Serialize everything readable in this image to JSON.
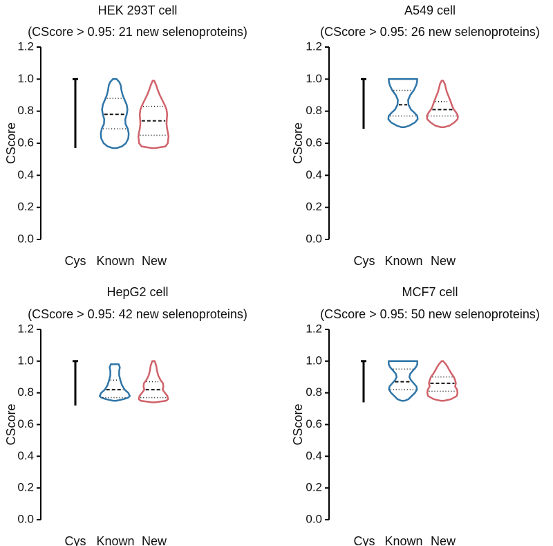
{
  "colors": {
    "cys": "#000000",
    "known": "#2f75a8",
    "new": "#d0626a",
    "axis": "#000000"
  },
  "chart_data": [
    {
      "type": "violin",
      "title": "HEK 293T cell",
      "subtitle": "(CScore > 0.95: 21 new selenoproteins)",
      "ylabel": "CScore",
      "ylim": [
        0.0,
        1.2
      ],
      "yticks": [
        "0.0",
        "0.2",
        "0.4",
        "0.6",
        "0.8",
        "1.0",
        "1.2"
      ],
      "categories": [
        "Cys",
        "Known",
        "New"
      ],
      "cys": {
        "min": 0.57,
        "max": 1.0
      },
      "series": [
        {
          "name": "Known",
          "q1": 0.69,
          "median": 0.78,
          "q3": 0.88,
          "profile": [
            [
              0.57,
              0.12
            ],
            [
              0.58,
              0.45
            ],
            [
              0.6,
              0.7
            ],
            [
              0.63,
              0.85
            ],
            [
              0.66,
              0.88
            ],
            [
              0.69,
              0.82
            ],
            [
              0.72,
              0.68
            ],
            [
              0.75,
              0.66
            ],
            [
              0.78,
              0.75
            ],
            [
              0.81,
              0.8
            ],
            [
              0.84,
              0.75
            ],
            [
              0.87,
              0.62
            ],
            [
              0.9,
              0.5
            ],
            [
              0.93,
              0.42
            ],
            [
              0.96,
              0.38
            ],
            [
              0.98,
              0.3
            ],
            [
              1.0,
              0.12
            ]
          ]
        },
        {
          "name": "New",
          "q1": 0.65,
          "median": 0.74,
          "q3": 0.83,
          "profile": [
            [
              0.57,
              0.1
            ],
            [
              0.58,
              0.75
            ],
            [
              0.6,
              0.9
            ],
            [
              0.62,
              0.92
            ],
            [
              0.64,
              0.95
            ],
            [
              0.66,
              0.92
            ],
            [
              0.69,
              0.86
            ],
            [
              0.72,
              0.82
            ],
            [
              0.75,
              0.84
            ],
            [
              0.78,
              0.86
            ],
            [
              0.81,
              0.82
            ],
            [
              0.84,
              0.7
            ],
            [
              0.87,
              0.55
            ],
            [
              0.9,
              0.4
            ],
            [
              0.93,
              0.28
            ],
            [
              0.96,
              0.18
            ],
            [
              0.99,
              0.05
            ]
          ]
        }
      ]
    },
    {
      "type": "violin",
      "title": "A549 cell",
      "subtitle": "(CScore > 0.95: 26 new selenoproteins)",
      "ylabel": "CScore",
      "ylim": [
        0.0,
        1.2
      ],
      "yticks": [
        "0.0",
        "0.2",
        "0.4",
        "0.6",
        "0.8",
        "1.0",
        "1.2"
      ],
      "categories": [
        "Cys",
        "Known",
        "New"
      ],
      "cys": {
        "min": 0.69,
        "max": 1.0
      },
      "series": [
        {
          "name": "Known",
          "q1": 0.77,
          "median": 0.84,
          "q3": 0.93,
          "profile": [
            [
              0.7,
              0.1
            ],
            [
              0.71,
              0.4
            ],
            [
              0.73,
              0.75
            ],
            [
              0.75,
              0.92
            ],
            [
              0.77,
              0.9
            ],
            [
              0.79,
              0.72
            ],
            [
              0.81,
              0.5
            ],
            [
              0.84,
              0.35
            ],
            [
              0.87,
              0.32
            ],
            [
              0.9,
              0.45
            ],
            [
              0.93,
              0.68
            ],
            [
              0.96,
              0.82
            ],
            [
              0.98,
              0.88
            ],
            [
              1.0,
              0.9
            ]
          ]
        },
        {
          "name": "New",
          "q1": 0.77,
          "median": 0.81,
          "q3": 0.86,
          "profile": [
            [
              0.7,
              0.1
            ],
            [
              0.71,
              0.45
            ],
            [
              0.73,
              0.75
            ],
            [
              0.75,
              0.95
            ],
            [
              0.77,
              0.98
            ],
            [
              0.79,
              0.88
            ],
            [
              0.81,
              0.72
            ],
            [
              0.83,
              0.62
            ],
            [
              0.86,
              0.52
            ],
            [
              0.89,
              0.4
            ],
            [
              0.92,
              0.28
            ],
            [
              0.95,
              0.2
            ],
            [
              0.97,
              0.15
            ],
            [
              0.99,
              0.05
            ]
          ]
        }
      ]
    },
    {
      "type": "violin",
      "title": "HepG2 cell",
      "subtitle": "(CScore > 0.95: 42 new selenoproteins)",
      "ylabel": "CScore",
      "ylim": [
        0.0,
        1.2
      ],
      "yticks": [
        "0.0",
        "0.2",
        "0.4",
        "0.6",
        "0.8",
        "1.0",
        "1.2"
      ],
      "categories": [
        "Cys",
        "Known",
        "New"
      ],
      "cys": {
        "min": 0.72,
        "max": 1.0
      },
      "series": [
        {
          "name": "Known",
          "q1": 0.77,
          "median": 0.82,
          "q3": 0.88,
          "profile": [
            [
              0.75,
              0.1
            ],
            [
              0.76,
              0.55
            ],
            [
              0.77,
              0.85
            ],
            [
              0.78,
              0.95
            ],
            [
              0.8,
              0.85
            ],
            [
              0.82,
              0.62
            ],
            [
              0.85,
              0.45
            ],
            [
              0.88,
              0.35
            ],
            [
              0.91,
              0.28
            ],
            [
              0.94,
              0.28
            ],
            [
              0.96,
              0.32
            ],
            [
              0.98,
              0.25
            ]
          ]
        },
        {
          "name": "New",
          "q1": 0.77,
          "median": 0.82,
          "q3": 0.87,
          "profile": [
            [
              0.74,
              0.1
            ],
            [
              0.75,
              0.8
            ],
            [
              0.76,
              0.92
            ],
            [
              0.78,
              0.88
            ],
            [
              0.8,
              0.72
            ],
            [
              0.82,
              0.58
            ],
            [
              0.84,
              0.62
            ],
            [
              0.86,
              0.6
            ],
            [
              0.88,
              0.45
            ],
            [
              0.91,
              0.3
            ],
            [
              0.94,
              0.22
            ],
            [
              0.97,
              0.18
            ],
            [
              1.0,
              0.08
            ]
          ]
        }
      ]
    },
    {
      "type": "violin",
      "title": "MCF7 cell",
      "subtitle": "(CScore > 0.95: 50 new selenoproteins)",
      "ylabel": "CScore",
      "ylim": [
        0.0,
        1.2
      ],
      "yticks": [
        "0.0",
        "0.2",
        "0.4",
        "0.6",
        "0.8",
        "1.0",
        "1.2"
      ],
      "categories": [
        "Cys",
        "Known",
        "New"
      ],
      "cys": {
        "min": 0.74,
        "max": 1.0
      },
      "series": [
        {
          "name": "Known",
          "q1": 0.82,
          "median": 0.87,
          "q3": 0.95,
          "profile": [
            [
              0.75,
              0.1
            ],
            [
              0.76,
              0.35
            ],
            [
              0.78,
              0.55
            ],
            [
              0.8,
              0.75
            ],
            [
              0.82,
              0.88
            ],
            [
              0.84,
              0.85
            ],
            [
              0.86,
              0.68
            ],
            [
              0.88,
              0.5
            ],
            [
              0.9,
              0.4
            ],
            [
              0.92,
              0.45
            ],
            [
              0.94,
              0.62
            ],
            [
              0.96,
              0.8
            ],
            [
              0.98,
              0.9
            ],
            [
              1.0,
              0.9
            ]
          ]
        },
        {
          "name": "New",
          "q1": 0.81,
          "median": 0.86,
          "q3": 0.9,
          "profile": [
            [
              0.75,
              0.1
            ],
            [
              0.76,
              0.55
            ],
            [
              0.78,
              0.9
            ],
            [
              0.8,
              0.95
            ],
            [
              0.82,
              0.92
            ],
            [
              0.84,
              0.8
            ],
            [
              0.86,
              0.85
            ],
            [
              0.88,
              0.8
            ],
            [
              0.9,
              0.72
            ],
            [
              0.92,
              0.58
            ],
            [
              0.94,
              0.45
            ],
            [
              0.96,
              0.35
            ],
            [
              0.98,
              0.22
            ],
            [
              1.0,
              0.05
            ]
          ]
        }
      ]
    }
  ]
}
